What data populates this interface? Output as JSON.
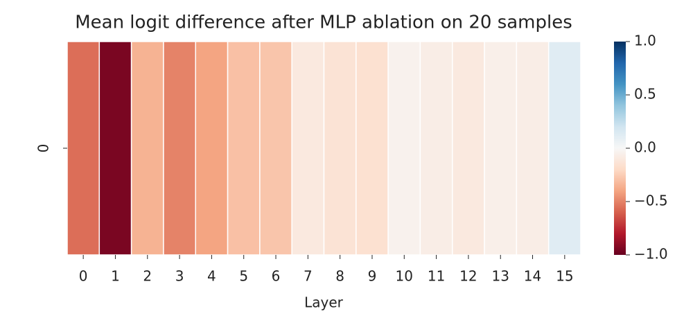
{
  "chart_data": {
    "type": "heatmap",
    "title": "Mean logit difference after MLP ablation on 20 samples",
    "x_label": "Layer",
    "categories": [
      "0",
      "1",
      "2",
      "3",
      "4",
      "5",
      "6",
      "7",
      "8",
      "9",
      "10",
      "11",
      "12",
      "13",
      "14",
      "15"
    ],
    "y_categories": [
      "0"
    ],
    "values": [
      -0.56,
      -0.95,
      -0.35,
      -0.5,
      -0.4,
      -0.3,
      -0.28,
      -0.1,
      -0.14,
      -0.16,
      -0.04,
      -0.07,
      -0.1,
      -0.06,
      -0.07,
      0.12
    ],
    "colormap": "RdBu",
    "clim": [
      -1,
      1
    ],
    "cticks": [
      {
        "value": 1,
        "label": "1.0"
      },
      0.5,
      {
        "value": 0,
        "label": "0.0"
      },
      {
        "value": -0.5,
        "label": "−0.5"
      },
      {
        "value": -1,
        "label": "−1.0"
      }
    ]
  }
}
